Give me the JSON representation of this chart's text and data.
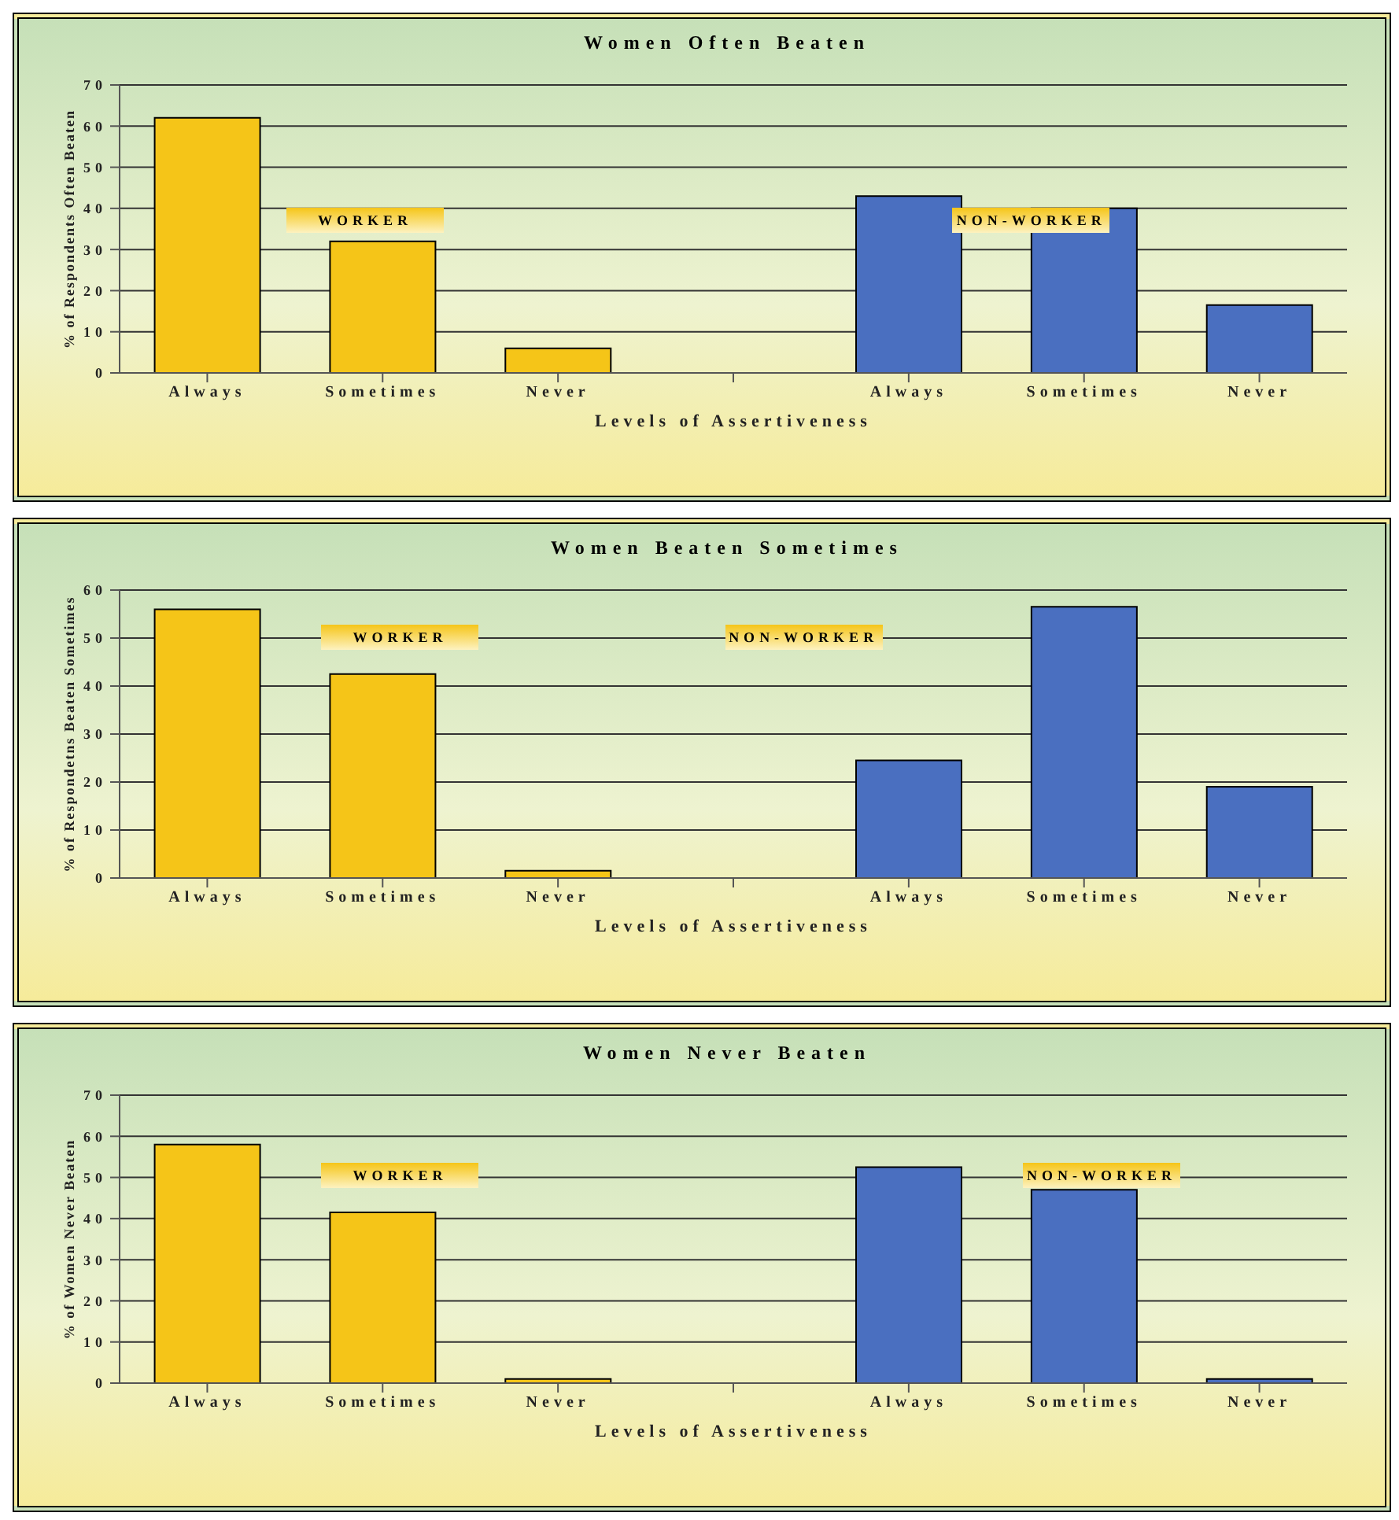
{
  "chart_data": [
    {
      "type": "bar",
      "title": "Women Often Beaten",
      "xlabel": "Levels of Assertiveness",
      "ylabel": "% of Respondents Often Beaten",
      "categories": [
        "Always",
        "Sometimes",
        "Never",
        null,
        "Always",
        "Sometimes",
        "Never"
      ],
      "series": [
        {
          "name": "WORKER",
          "color": "#f5c518",
          "values": [
            62,
            32,
            6,
            null,
            null,
            null,
            null
          ]
        },
        {
          "name": "NON-WORKER",
          "color": "#4a6fc0",
          "values": [
            null,
            null,
            null,
            null,
            43,
            40,
            16.5
          ]
        }
      ],
      "ylim": [
        0,
        70
      ],
      "yticks": [
        0,
        10,
        20,
        30,
        40,
        50,
        60,
        70
      ],
      "grid": "y"
    },
    {
      "type": "bar",
      "title": "Women Beaten Sometimes",
      "xlabel": "Levels of Assertiveness",
      "ylabel": "% of Respondetns Beaten Sometimes",
      "categories": [
        "Always",
        "Sometimes",
        "Never",
        null,
        "Always",
        "Sometimes",
        "Never"
      ],
      "series": [
        {
          "name": "WORKER",
          "color": "#f5c518",
          "values": [
            56,
            42.5,
            1.5,
            null,
            null,
            null,
            null
          ]
        },
        {
          "name": "NON-WORKER",
          "color": "#4a6fc0",
          "values": [
            null,
            null,
            null,
            null,
            24.5,
            56.5,
            19
          ]
        }
      ],
      "ylim": [
        0,
        60
      ],
      "yticks": [
        0,
        10,
        20,
        30,
        40,
        50,
        60
      ],
      "grid": "y"
    },
    {
      "type": "bar",
      "title": "Women Never Beaten",
      "xlabel": "Levels of Assertiveness",
      "ylabel": "% of Women Never Beaten",
      "categories": [
        "Always",
        "Sometimes",
        "Never",
        null,
        "Always",
        "Sometimes",
        "Never"
      ],
      "series": [
        {
          "name": "WORKER",
          "color": "#f5c518",
          "values": [
            58,
            41.5,
            1,
            null,
            null,
            null,
            null
          ]
        },
        {
          "name": "NON-WORKER",
          "color": "#4a6fc0",
          "values": [
            null,
            null,
            null,
            null,
            52.5,
            47,
            1
          ]
        }
      ],
      "ylim": [
        0,
        70
      ],
      "yticks": [
        0,
        10,
        20,
        30,
        40,
        50,
        60,
        70
      ],
      "grid": "y"
    }
  ]
}
